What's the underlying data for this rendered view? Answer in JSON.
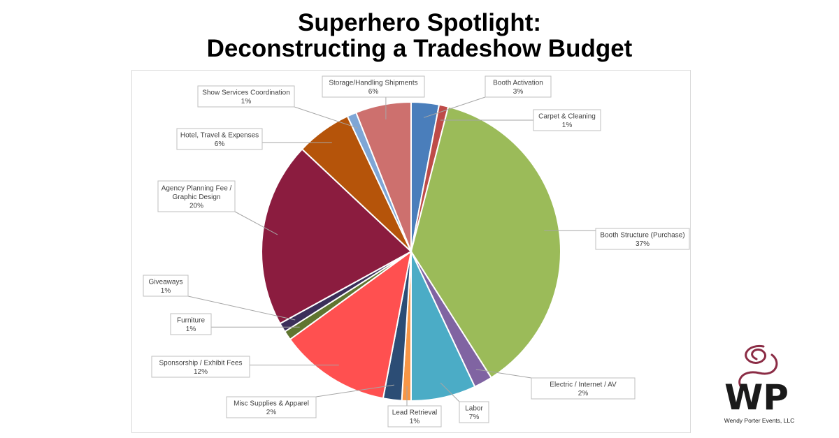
{
  "title_line1": "Superhero Spotlight:",
  "title_line2": "Deconstructing a Tradeshow Budget",
  "logo": {
    "caption": "Wendy Porter Events, LLC",
    "monogram": "WP"
  },
  "chart_data": {
    "type": "pie",
    "start_angle_deg": 0,
    "direction": "clockwise",
    "slices": [
      {
        "name": "Booth Activation",
        "value": 3,
        "label": "3%",
        "color": "#4a7ebb"
      },
      {
        "name": "Carpet & Cleaning",
        "value": 1,
        "label": "1%",
        "color": "#be4b48"
      },
      {
        "name": "Booth Structure (Purchase)",
        "value": 37,
        "label": "37%",
        "color": "#9bbb59"
      },
      {
        "name": "Electric / Internet / AV",
        "value": 2,
        "label": "2%",
        "color": "#8064a2"
      },
      {
        "name": "Labor",
        "value": 7,
        "label": "7%",
        "color": "#4bacc6"
      },
      {
        "name": "Lead Retrieval",
        "value": 1,
        "label": "1%",
        "color": "#f79646"
      },
      {
        "name": "Misc Supplies & Apparel",
        "value": 2,
        "label": "2%",
        "color": "#2c4d75"
      },
      {
        "name": "Sponsorship / Exhibit Fees",
        "value": 12,
        "label": "12%",
        "color": "#ff5050"
      },
      {
        "name": "Furniture",
        "value": 1,
        "label": "1%",
        "color": "#5f7530"
      },
      {
        "name": "Giveaways",
        "value": 1,
        "label": "1%",
        "color": "#3b2f5a"
      },
      {
        "name": "Agency Planning Fee / Graphic Design",
        "value": 20,
        "label": "20%",
        "color": "#8b1c3f"
      },
      {
        "name": "Hotel, Travel & Expenses",
        "value": 6,
        "label": "6%",
        "color": "#b5540a"
      },
      {
        "name": "Show Services Coordination",
        "value": 1,
        "label": "1%",
        "color": "#7ea6d6"
      },
      {
        "name": "Storage/Handling Shipments",
        "value": 6,
        "label": "6%",
        "color": "#cd706e"
      }
    ]
  }
}
